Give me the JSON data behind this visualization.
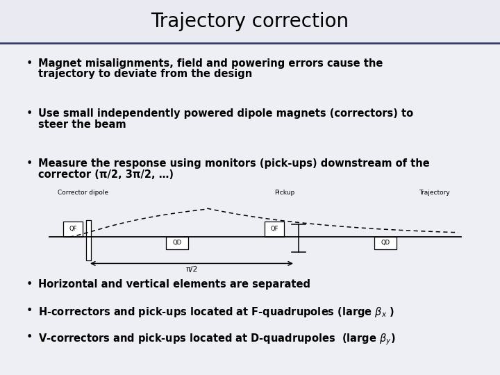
{
  "title": "Trajectory correction",
  "background_color": "#eeeef5",
  "title_bg_color": "#eaeaf2",
  "separator_color": "#3a3a6a",
  "text_color": "#000000",
  "bullet_points": [
    "Magnet misalignments, field and powering errors cause the\ntrajectory to deviate from the design",
    "Use small independently powered dipole magnets (correctors) to\nsteer the beam",
    "Measure the response using monitors (pick-ups) downstream of the\ncorrector (π/2, 3π/2, …)"
  ],
  "bullet_points_bottom": [
    "Horizontal and vertical elements are separated",
    "H-correctors and pick-ups located at F-quadrupoles (large $\\beta_x$ )",
    "V-correctors and pick-ups located at D-quadrupoles  (large $\\beta_y$)"
  ],
  "corrector_label": "Corrector dipole",
  "pickup_label": "Pickup",
  "trajectory_label": "Trajectory",
  "pi_half_label": "π/2",
  "qf_label": "QF",
  "qd_label": "QD"
}
